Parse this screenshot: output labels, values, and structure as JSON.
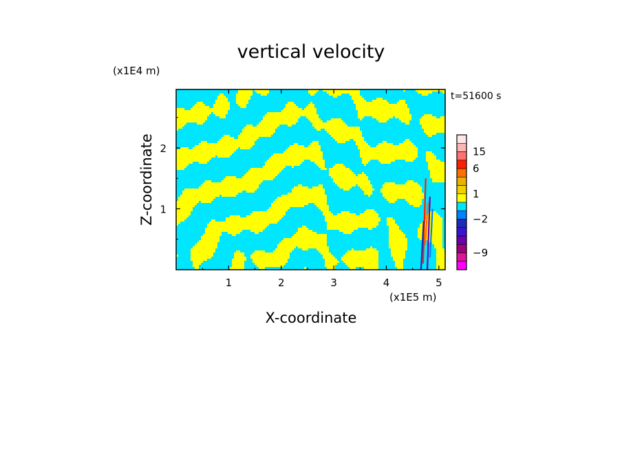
{
  "chart_data": {
    "type": "heatmap",
    "title": "vertical velocity",
    "xlabel": "X-coordinate",
    "ylabel": "Z-coordinate",
    "x_unit": "(x1E5 m)",
    "y_unit": "(x1E4 m)",
    "time_label": "t=51600 s",
    "xlim": [
      0,
      5.12
    ],
    "ylim": [
      0,
      2.96
    ],
    "x_ticks": [
      1,
      2,
      3,
      4,
      5
    ],
    "y_ticks": [
      1,
      2
    ],
    "colorbar": {
      "levels": [
        {
          "upper": -12,
          "color": "#ff00ff"
        },
        {
          "upper": -9,
          "color": "#e0149c"
        },
        {
          "upper": -6,
          "color": "#a0007a"
        },
        {
          "upper": -4,
          "color": "#6a00b0"
        },
        {
          "upper": -3,
          "color": "#3a14d0"
        },
        {
          "upper": -2,
          "color": "#1a2cb8"
        },
        {
          "upper": -1,
          "color": "#0082ff"
        },
        {
          "upper": 0,
          "color": "#00e6ff"
        },
        {
          "upper": 1,
          "color": "#ffff00"
        },
        {
          "upper": 2,
          "color": "#f0d200"
        },
        {
          "upper": 3,
          "color": "#e6b400"
        },
        {
          "upper": 6,
          "color": "#ff6e00"
        },
        {
          "upper": 10,
          "color": "#ff1e00"
        },
        {
          "upper": 15,
          "color": "#ff7272"
        },
        {
          "upper": 20,
          "color": "#ffb4b4"
        },
        {
          "upper": 30,
          "color": "#ffe6e6"
        }
      ],
      "labels": [
        {
          "text": "15",
          "value": 15
        },
        {
          "text": "6",
          "value": 6
        },
        {
          "text": "1",
          "value": 1
        },
        {
          "text": "−2",
          "value": -2
        },
        {
          "text": "−9",
          "value": -9
        }
      ]
    }
  }
}
